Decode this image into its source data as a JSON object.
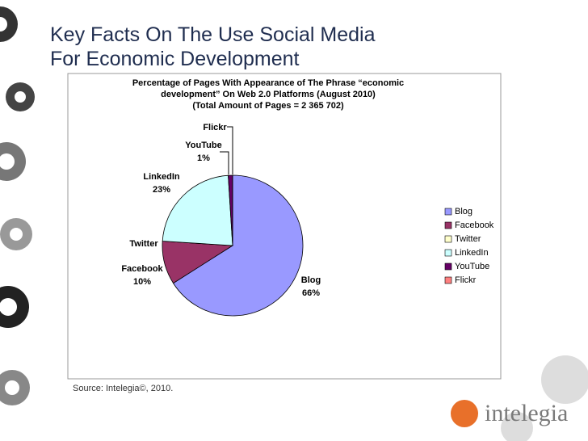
{
  "slide": {
    "title": "Key Facts On The Use Social Media For Economic Development",
    "source": "Source: Intelegia©, 2010.",
    "logo": "intelegia"
  },
  "chart_data": {
    "type": "pie",
    "title": [
      "Percentage of Pages With Appearance of The Phrase “economic",
      "development” On Web 2.0 Platforms (August 2010)"
    ],
    "subtitle": "(Total Amount of Pages = 2 365 702)",
    "categories": [
      "Blog",
      "Facebook",
      "Twitter",
      "LinkedIn",
      "YouTube",
      "Flickr"
    ],
    "values": [
      66,
      10,
      0,
      23,
      1,
      0
    ],
    "value_labels": [
      "66%",
      "10%",
      null,
      "23%",
      "1%",
      null
    ],
    "colors": [
      "#9999ff",
      "#993366",
      "#ffffcc",
      "#ccffff",
      "#660066",
      "#ff8080"
    ],
    "legend": "right"
  }
}
